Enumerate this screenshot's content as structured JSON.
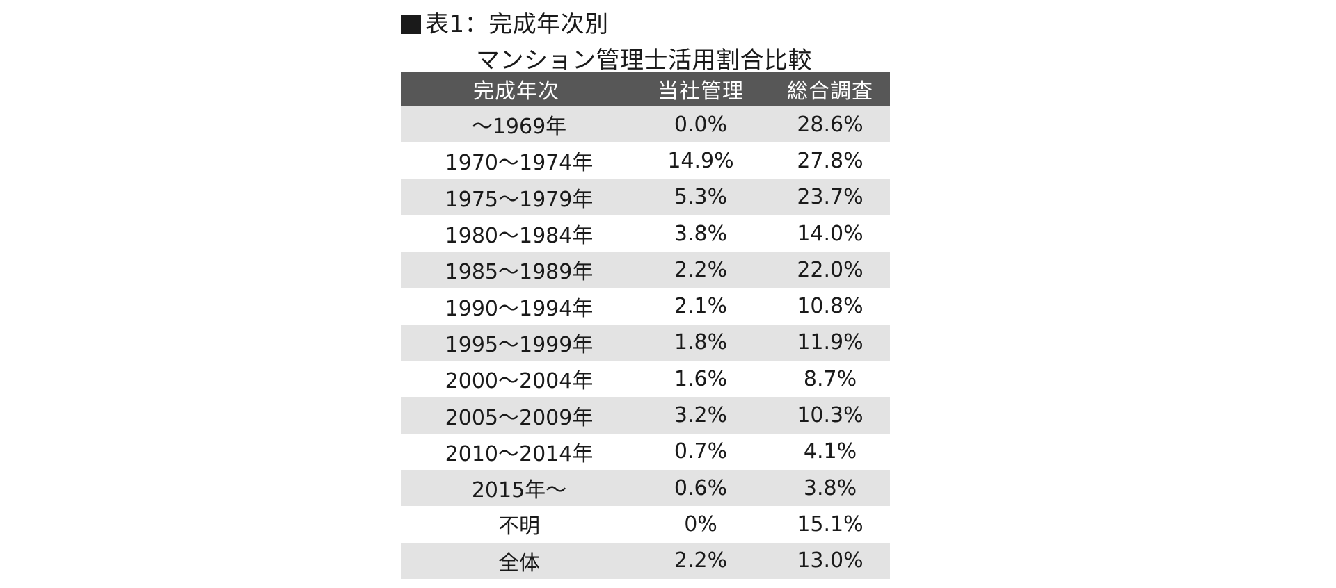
{
  "title": {
    "line1": "表1：完成年次別",
    "line2": "マンション管理士活用割合比較"
  },
  "chart_data": {
    "type": "table",
    "title": "表1：完成年次別 マンション管理士活用割合比較",
    "columns": [
      "完成年次",
      "当社管理",
      "総合調査"
    ],
    "rows": [
      [
        "～1969年",
        "0.0%",
        "28.6%"
      ],
      [
        "1970～1974年",
        "14.9%",
        "27.8%"
      ],
      [
        "1975～1979年",
        "5.3%",
        "23.7%"
      ],
      [
        "1980～1984年",
        "3.8%",
        "14.0%"
      ],
      [
        "1985～1989年",
        "2.2%",
        "22.0%"
      ],
      [
        "1990～1994年",
        "2.1%",
        "10.8%"
      ],
      [
        "1995～1999年",
        "1.8%",
        "11.9%"
      ],
      [
        "2000～2004年",
        "1.6%",
        "8.7%"
      ],
      [
        "2005～2009年",
        "3.2%",
        "10.3%"
      ],
      [
        "2010～2014年",
        "0.7%",
        "4.1%"
      ],
      [
        "2015年～",
        "0.6%",
        "3.8%"
      ],
      [
        "不明",
        "0%",
        "15.1%"
      ],
      [
        "全体",
        "2.2%",
        "13.0%"
      ]
    ]
  },
  "colors": {
    "header_bg": "#575757",
    "header_text": "#ffffff",
    "stripe_bg": "#e3e3e3",
    "text": "#1a1a1a"
  }
}
